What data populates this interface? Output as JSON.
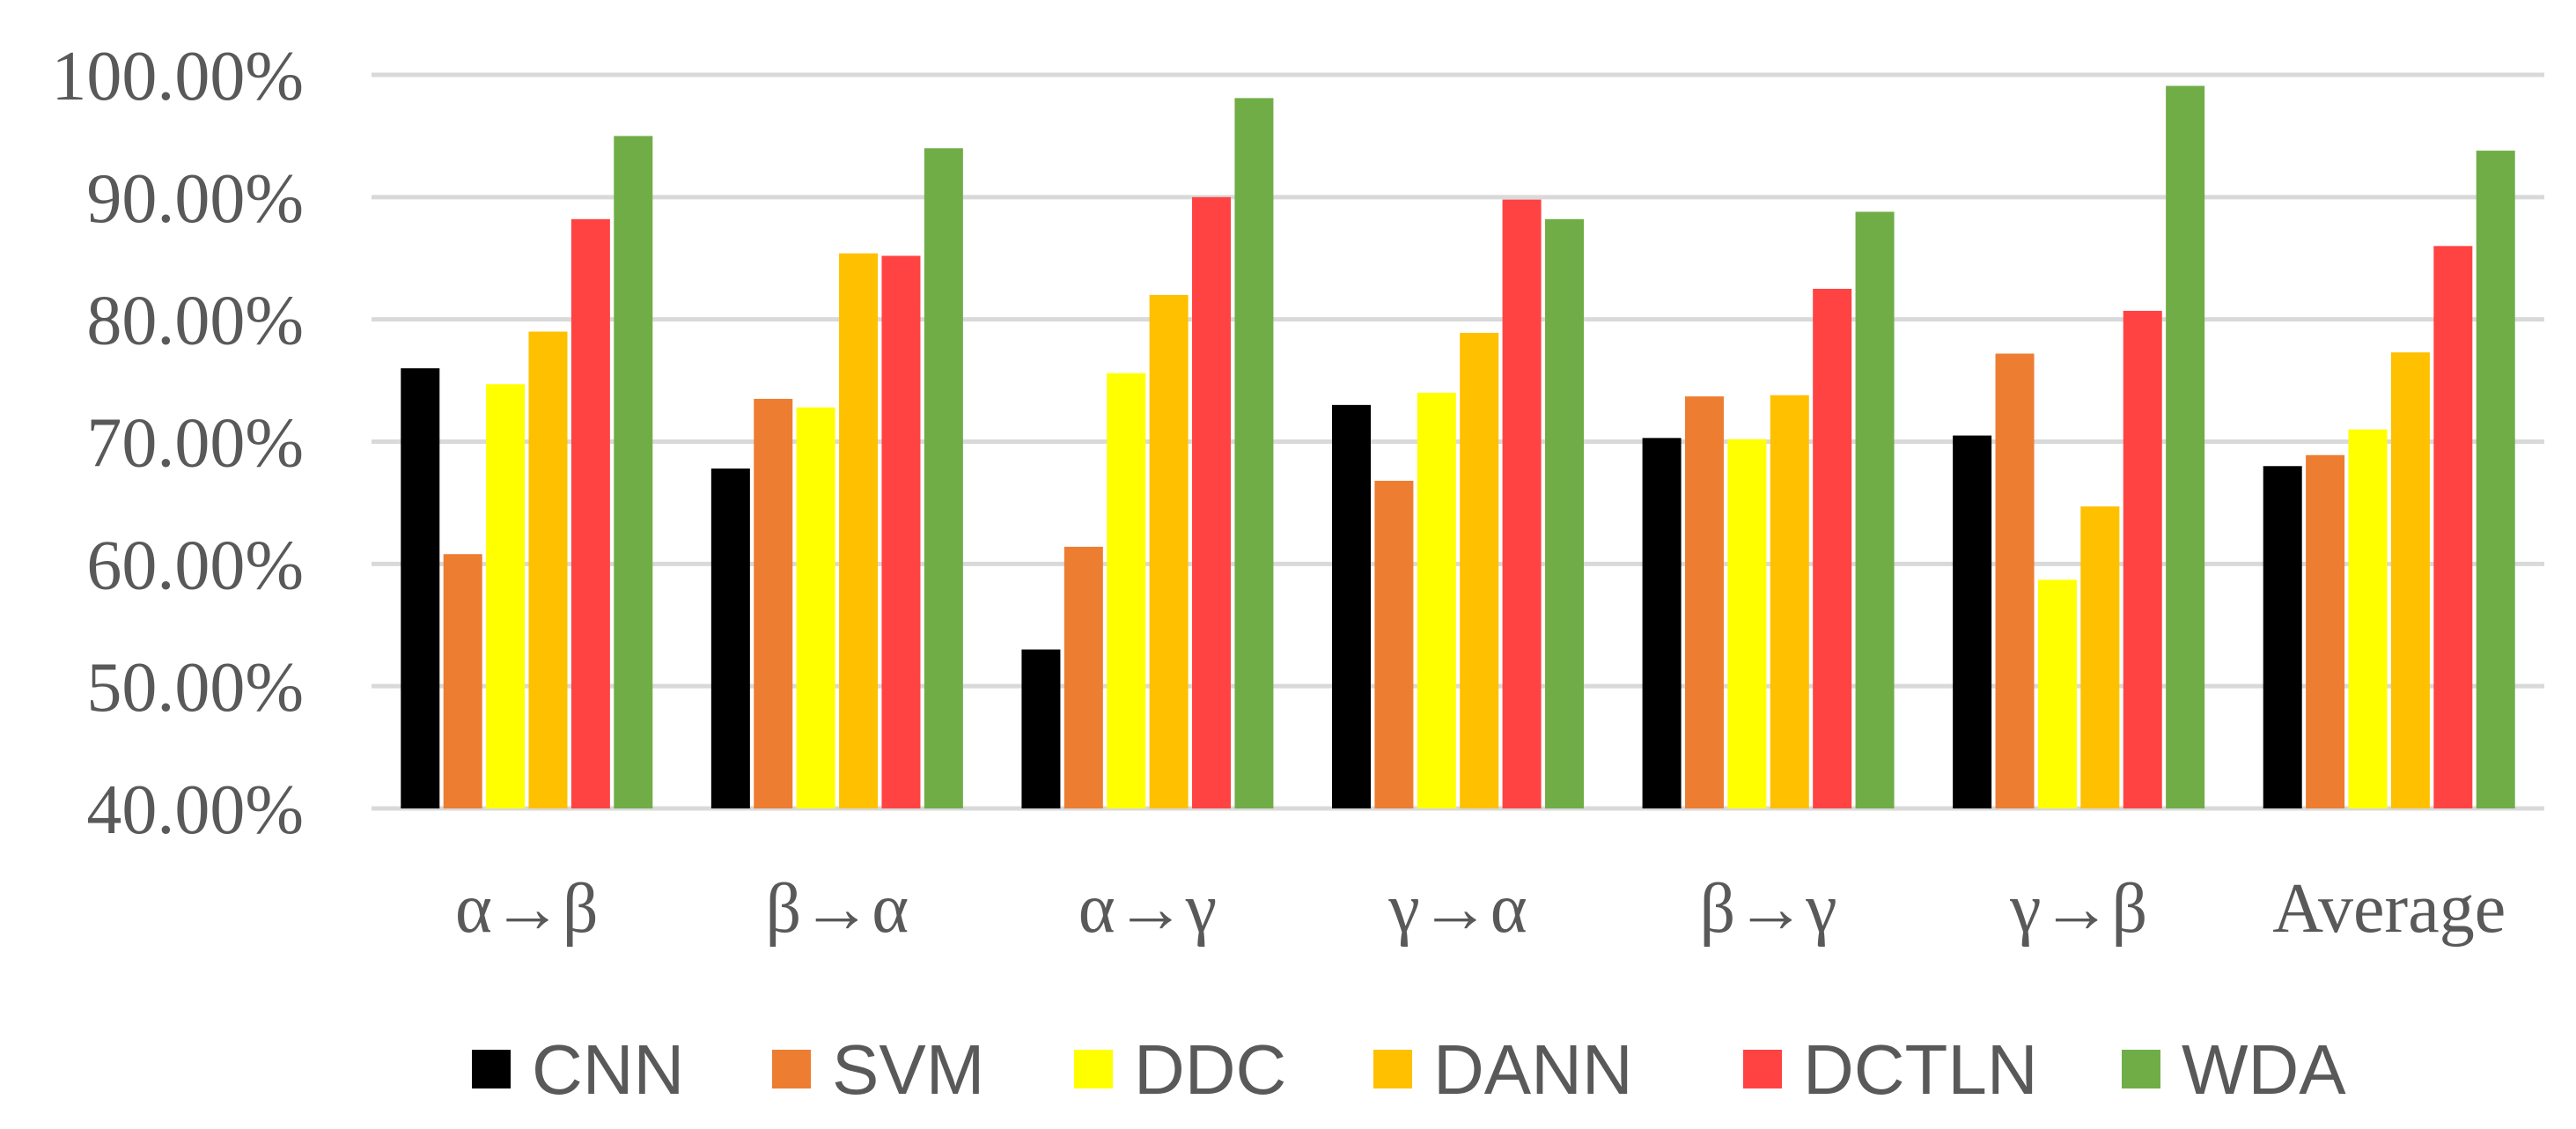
{
  "chart_data": {
    "type": "bar",
    "title": "",
    "xlabel": "",
    "ylabel": "",
    "ylim": [
      0.4,
      1.0
    ],
    "yticks": [
      0.4,
      0.5,
      0.6,
      0.7,
      0.8,
      0.9,
      1.0
    ],
    "ytick_labels": [
      "40.00%",
      "50.00%",
      "60.00%",
      "70.00%",
      "80.00%",
      "90.00%",
      "100.00%"
    ],
    "grid": true,
    "legend_position": "bottom",
    "categories": [
      "α→β",
      "β→α",
      "α→γ",
      "γ→α",
      "β→γ",
      "γ→β",
      "Average"
    ],
    "series": [
      {
        "name": "CNN",
        "color": "#000000",
        "values": [
          0.76,
          0.678,
          0.53,
          0.73,
          0.703,
          0.705,
          0.68
        ]
      },
      {
        "name": "SVM",
        "color": "#ED7D31",
        "values": [
          0.608,
          0.735,
          0.614,
          0.668,
          0.737,
          0.772,
          0.689
        ]
      },
      {
        "name": "DDC",
        "color": "#FFFF00",
        "values": [
          0.747,
          0.728,
          0.756,
          0.74,
          0.702,
          0.587,
          0.71
        ]
      },
      {
        "name": "DANN",
        "color": "#FFC000",
        "values": [
          0.79,
          0.854,
          0.82,
          0.789,
          0.738,
          0.647,
          0.773
        ]
      },
      {
        "name": "DCTLN",
        "color": "#FF4343",
        "values": [
          0.882,
          0.852,
          0.9,
          0.898,
          0.825,
          0.807,
          0.86
        ]
      },
      {
        "name": "WDA",
        "color": "#70AD47",
        "values": [
          0.95,
          0.94,
          0.981,
          0.882,
          0.888,
          0.991,
          0.938
        ]
      }
    ]
  }
}
